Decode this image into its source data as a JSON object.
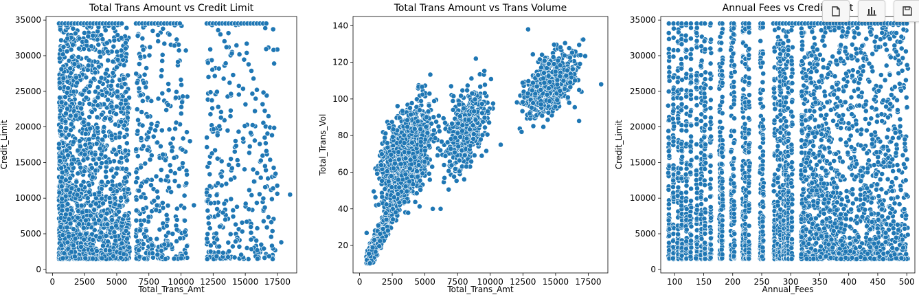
{
  "colors": {
    "point": "#1f77b4",
    "point_edge": "#ffffff",
    "axis": "#000000"
  },
  "toolbar": {
    "items": [
      {
        "name": "copy-icon"
      },
      {
        "name": "bar-chart-icon"
      },
      {
        "name": "save-icon"
      }
    ]
  },
  "chart_data": [
    {
      "type": "scatter",
      "title": "Total Trans Amount vs Credit Limit",
      "xlabel": "Total_Trans_Amt",
      "ylabel": "Credit_Limit",
      "xlim": [
        -500,
        19000
      ],
      "ylim": [
        -500,
        35500
      ],
      "xticks": [
        0,
        2500,
        5000,
        7500,
        10000,
        12500,
        15000,
        17500
      ],
      "yticks": [
        0,
        5000,
        10000,
        15000,
        20000,
        25000,
        30000,
        35000
      ],
      "grid": false,
      "clusters": [
        {
          "x": [
            510,
            6000
          ],
          "y": [
            1438,
            34516
          ],
          "n": 1700,
          "dist": "low-skew"
        },
        {
          "x": [
            6500,
            10500
          ],
          "y": [
            1438,
            34516
          ],
          "n": 360,
          "dist": "low-skew"
        },
        {
          "x": [
            12000,
            17500
          ],
          "y": [
            1438,
            34516
          ],
          "n": 320,
          "dist": "low-skew"
        }
      ],
      "cap_line": {
        "y": 34516,
        "segments": [
          [
            510,
            5500
          ],
          [
            6500,
            10000
          ],
          [
            12000,
            16700
          ]
        ]
      },
      "points": [
        {
          "x": 18484,
          "y": 10500
        },
        {
          "x": 17800,
          "y": 3800
        },
        {
          "x": 12300,
          "y": 2500
        },
        {
          "x": 12100,
          "y": 29000
        },
        {
          "x": 17200,
          "y": 30800
        },
        {
          "x": 11000,
          "y": 9000
        },
        {
          "x": 10700,
          "y": 18000
        }
      ]
    },
    {
      "type": "scatter",
      "title": "Total Trans Amount vs Trans Volume",
      "xlabel": "Total_Trans_Amt",
      "ylabel": "Total_Trans_Vol",
      "xlim": [
        -500,
        19000
      ],
      "ylim": [
        5,
        145
      ],
      "xticks": [
        0,
        2500,
        5000,
        7500,
        10000,
        12500,
        15000,
        17500
      ],
      "yticks": [
        20,
        40,
        60,
        80,
        100,
        120,
        140
      ],
      "grid": false,
      "clusters": [
        {
          "x": [
            510,
            2500
          ],
          "y": [
            10,
            40
          ],
          "n": 500,
          "dist": "linear-band",
          "slope": 0.014,
          "x0": 500,
          "y0": 10,
          "spread": 6
        },
        {
          "x": [
            1500,
            5500
          ],
          "y": [
            25,
            100
          ],
          "n": 1500,
          "dist": "ellipse",
          "cx": 3600,
          "cy": 68,
          "rx": 1800,
          "ry": 22
        },
        {
          "x": [
            6500,
            10000
          ],
          "y": [
            55,
            112
          ],
          "n": 500,
          "dist": "ellipse",
          "cx": 8100,
          "cy": 83,
          "rx": 1500,
          "ry": 18
        },
        {
          "x": [
            12000,
            17500
          ],
          "y": [
            82,
            138
          ],
          "n": 650,
          "dist": "ellipse",
          "cx": 14600,
          "cy": 108,
          "rx": 2000,
          "ry": 14
        }
      ],
      "points": [
        {
          "x": 18484,
          "y": 108
        },
        {
          "x": 12900,
          "y": 138
        },
        {
          "x": 6200,
          "y": 40
        },
        {
          "x": 5600,
          "y": 40
        },
        {
          "x": 8900,
          "y": 122
        },
        {
          "x": 10800,
          "y": 75
        },
        {
          "x": 16800,
          "y": 88
        },
        {
          "x": 12400,
          "y": 82
        }
      ]
    },
    {
      "type": "scatter",
      "title": "Annual Fees vs Credit Limit",
      "xlabel": "Annual_Fees",
      "ylabel": "Credit_Limit",
      "xlim": [
        76,
        514
      ],
      "ylim": [
        -500,
        35500
      ],
      "xticks": [
        100,
        150,
        200,
        250,
        300,
        350,
        400,
        450,
        500
      ],
      "yticks": [
        0,
        5000,
        10000,
        15000,
        20000,
        25000,
        30000,
        35000
      ],
      "grid": false,
      "columns": [
        90,
        98,
        106,
        112,
        120,
        128,
        138,
        146,
        152,
        162,
        178,
        182,
        198,
        202,
        218,
        222,
        228,
        248,
        252,
        272,
        278,
        282,
        288,
        292,
        296,
        302
      ],
      "continuous_range": [
        318,
        502
      ],
      "clusters": [
        {
          "x": [
            318,
            502
          ],
          "y": [
            1438,
            34516
          ],
          "n": 1500,
          "dist": "low-skew"
        }
      ],
      "cap_line": {
        "y": 34516,
        "segments": [
          [
            270,
            502
          ]
        ]
      }
    }
  ]
}
